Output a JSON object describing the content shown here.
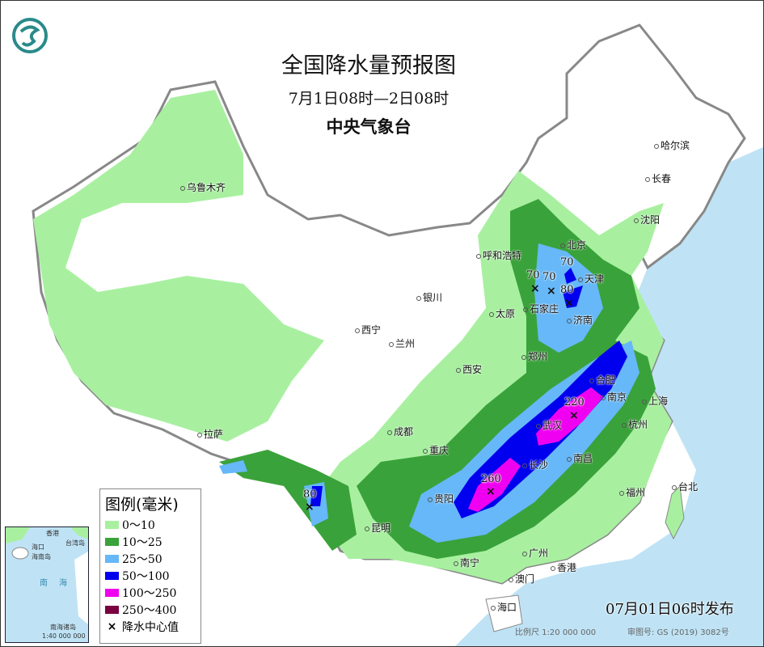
{
  "title": "全国降水量预报图",
  "period": "7月1日08时—2日08时",
  "issuer": "中央气象台",
  "issue_time": "07月01日06时发布",
  "scale": "比例尺 1:20 000 000",
  "review_no": "审图号: GS (2019) 3082号",
  "legend": {
    "title": "图例(毫米)",
    "items": [
      {
        "label": "0～10",
        "color": "#a8f0a0"
      },
      {
        "label": "10～25",
        "color": "#3aa23a"
      },
      {
        "label": "25～50",
        "color": "#66b8f8"
      },
      {
        "label": "50～100",
        "color": "#0000ee"
      },
      {
        "label": "100～250",
        "color": "#f000f0"
      },
      {
        "label": "250～400",
        "color": "#7a0040"
      }
    ],
    "center_label": "降水中心值",
    "center_symbol": "×"
  },
  "inset": {
    "labels": [
      "香港",
      "台湾岛",
      "海口",
      "海南岛",
      "南",
      "海",
      "南海诸岛",
      "1:40 000 000"
    ]
  },
  "cities": [
    "乌鲁木齐",
    "哈尔滨",
    "长春",
    "沈阳",
    "北京",
    "天津",
    "石家庄",
    "太原",
    "济南",
    "呼和浩特",
    "银川",
    "西宁",
    "兰州",
    "郑州",
    "西安",
    "成都",
    "重庆",
    "拉萨",
    "贵阳",
    "昆明",
    "南宁",
    "广州",
    "香港",
    "澳门",
    "海口",
    "长沙",
    "武汉",
    "南昌",
    "合肥",
    "南京",
    "上海",
    "杭州",
    "福州",
    "台北"
  ],
  "centers": [
    "70",
    "70",
    "70",
    "80",
    "220",
    "260",
    "80"
  ],
  "colors": {
    "sea": "#bfe3f5",
    "land": "#ffffff",
    "border": "#888888"
  }
}
